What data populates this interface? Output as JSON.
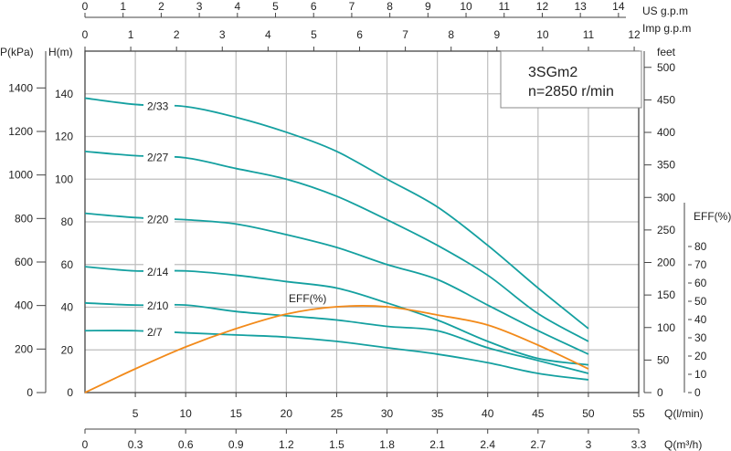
{
  "chart_data": {
    "type": "line",
    "title": "3SGm2",
    "subtitle": "n=2850 r/min",
    "x": [
      0,
      5,
      10,
      15,
      20,
      25,
      30,
      35,
      40,
      45,
      50
    ],
    "xlim": [
      0,
      55
    ],
    "ylim": [
      0,
      160
    ],
    "grid": true,
    "xlabel": "Q(l/min)",
    "ylabel": "H(m)",
    "axes": {
      "q_lmin": {
        "label": "Q(l/min)",
        "ticks": [
          5,
          10,
          15,
          20,
          25,
          30,
          35,
          40,
          45,
          50,
          55
        ]
      },
      "q_m3h": {
        "label": "Q(m³/h)",
        "ticks": [
          "0",
          "0.3",
          "0.6",
          "0.9",
          "1.2",
          "1.5",
          "1.8",
          "2.1",
          "2.4",
          "2.7",
          "3",
          "3.3"
        ]
      },
      "us_gpm": {
        "label": "US   g.p.m",
        "ticks": [
          0,
          1,
          2,
          3,
          4,
          5,
          6,
          7,
          8,
          9,
          10,
          11,
          12,
          13,
          14
        ]
      },
      "imp_gpm": {
        "label": "Imp   g.p.m",
        "ticks": [
          0,
          1,
          2,
          3,
          4,
          5,
          6,
          7,
          8,
          9,
          10,
          11,
          12
        ]
      },
      "pressure": {
        "label": "P(kPa)",
        "ticks": [
          0,
          200,
          400,
          600,
          800,
          1000,
          1200,
          1400
        ]
      },
      "head_m": {
        "label": "H(m)",
        "ticks": [
          0,
          20,
          40,
          60,
          80,
          100,
          120,
          140
        ]
      },
      "head_feet": {
        "label": "feet",
        "ticks": [
          0,
          50,
          100,
          150,
          200,
          250,
          300,
          350,
          400,
          450,
          500
        ]
      },
      "efficiency": {
        "label": "EFF(%)",
        "ticks": [
          0,
          10,
          20,
          30,
          40,
          50,
          60,
          70,
          80
        ]
      }
    },
    "series": [
      {
        "name": "2/33",
        "values": [
          138,
          135,
          134,
          129,
          122,
          113,
          100,
          87,
          69,
          49,
          30
        ]
      },
      {
        "name": "2/27",
        "values": [
          113,
          111,
          110,
          105,
          100,
          92,
          81,
          69,
          55,
          37,
          24
        ]
      },
      {
        "name": "2/20",
        "values": [
          84,
          82,
          81,
          79,
          74,
          68,
          60,
          53,
          41,
          29,
          18
        ]
      },
      {
        "name": "2/14",
        "values": [
          59,
          57,
          57,
          55,
          52,
          49,
          42,
          34,
          24,
          16,
          13
        ]
      },
      {
        "name": "2/10",
        "values": [
          42,
          41,
          41,
          38,
          36,
          34,
          31,
          29,
          21,
          15,
          9
        ]
      },
      {
        "name": "2/7",
        "values": [
          29,
          29,
          28,
          27,
          26,
          24,
          21,
          18,
          14,
          9,
          6
        ]
      }
    ],
    "efficiency_curve": {
      "name": "EFF(%)",
      "values": [
        0,
        13,
        25,
        35,
        43,
        47,
        47,
        42.5,
        37,
        26,
        13
      ]
    },
    "colors": {
      "head_curves": "#14a0a0",
      "efficiency": "#f28a1a",
      "grid": "#bdbdbd",
      "axis": "#444444"
    }
  }
}
